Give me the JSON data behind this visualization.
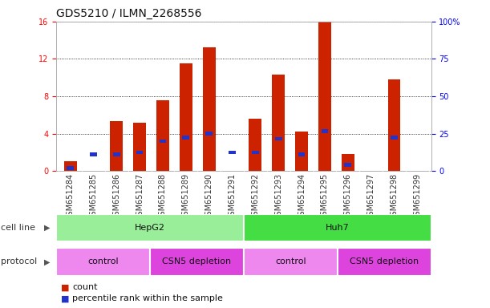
{
  "title": "GDS5210 / ILMN_2268556",
  "samples": [
    "GSM651284",
    "GSM651285",
    "GSM651286",
    "GSM651287",
    "GSM651288",
    "GSM651289",
    "GSM651290",
    "GSM651291",
    "GSM651292",
    "GSM651293",
    "GSM651294",
    "GSM651295",
    "GSM651296",
    "GSM651297",
    "GSM651298",
    "GSM651299"
  ],
  "counts": [
    1.0,
    0.0,
    5.3,
    5.2,
    7.6,
    11.5,
    13.2,
    0.0,
    5.6,
    10.3,
    4.2,
    16.0,
    1.8,
    0.0,
    9.8,
    0.0
  ],
  "percentile_ranks_pct": [
    2.0,
    11.0,
    11.0,
    12.5,
    20.0,
    22.5,
    25.0,
    12.5,
    12.5,
    21.5,
    11.0,
    26.5,
    4.0,
    0.0,
    22.5,
    0.0
  ],
  "bar_color": "#cc2200",
  "percentile_color": "#2233cc",
  "ylim_left": [
    0,
    16
  ],
  "ylim_right": [
    0,
    100
  ],
  "yticks_left": [
    0,
    4,
    8,
    12,
    16
  ],
  "ytick_labels_left": [
    "0",
    "4",
    "8",
    "12",
    "16"
  ],
  "yticks_right": [
    0,
    25,
    50,
    75,
    100
  ],
  "ytick_labels_right": [
    "0",
    "25",
    "50",
    "75",
    "100%"
  ],
  "cell_line_groups": [
    {
      "label": "HepG2",
      "start": 0,
      "end": 8,
      "color": "#99ee99"
    },
    {
      "label": "Huh7",
      "start": 8,
      "end": 16,
      "color": "#44dd44"
    }
  ],
  "protocol_groups": [
    {
      "label": "control",
      "start": 0,
      "end": 4,
      "color": "#ee88ee"
    },
    {
      "label": "CSN5 depletion",
      "start": 4,
      "end": 8,
      "color": "#dd44dd"
    },
    {
      "label": "control",
      "start": 8,
      "end": 12,
      "color": "#ee88ee"
    },
    {
      "label": "CSN5 depletion",
      "start": 12,
      "end": 16,
      "color": "#dd44dd"
    }
  ],
  "cell_line_row_label": "cell line",
  "protocol_row_label": "protocol",
  "legend_count_label": "count",
  "legend_percentile_label": "percentile rank within the sample",
  "grid_color": "#333333",
  "bar_width": 0.55,
  "title_fontsize": 10,
  "tick_fontsize": 7,
  "label_fontsize": 8,
  "row_label_fontsize": 8
}
